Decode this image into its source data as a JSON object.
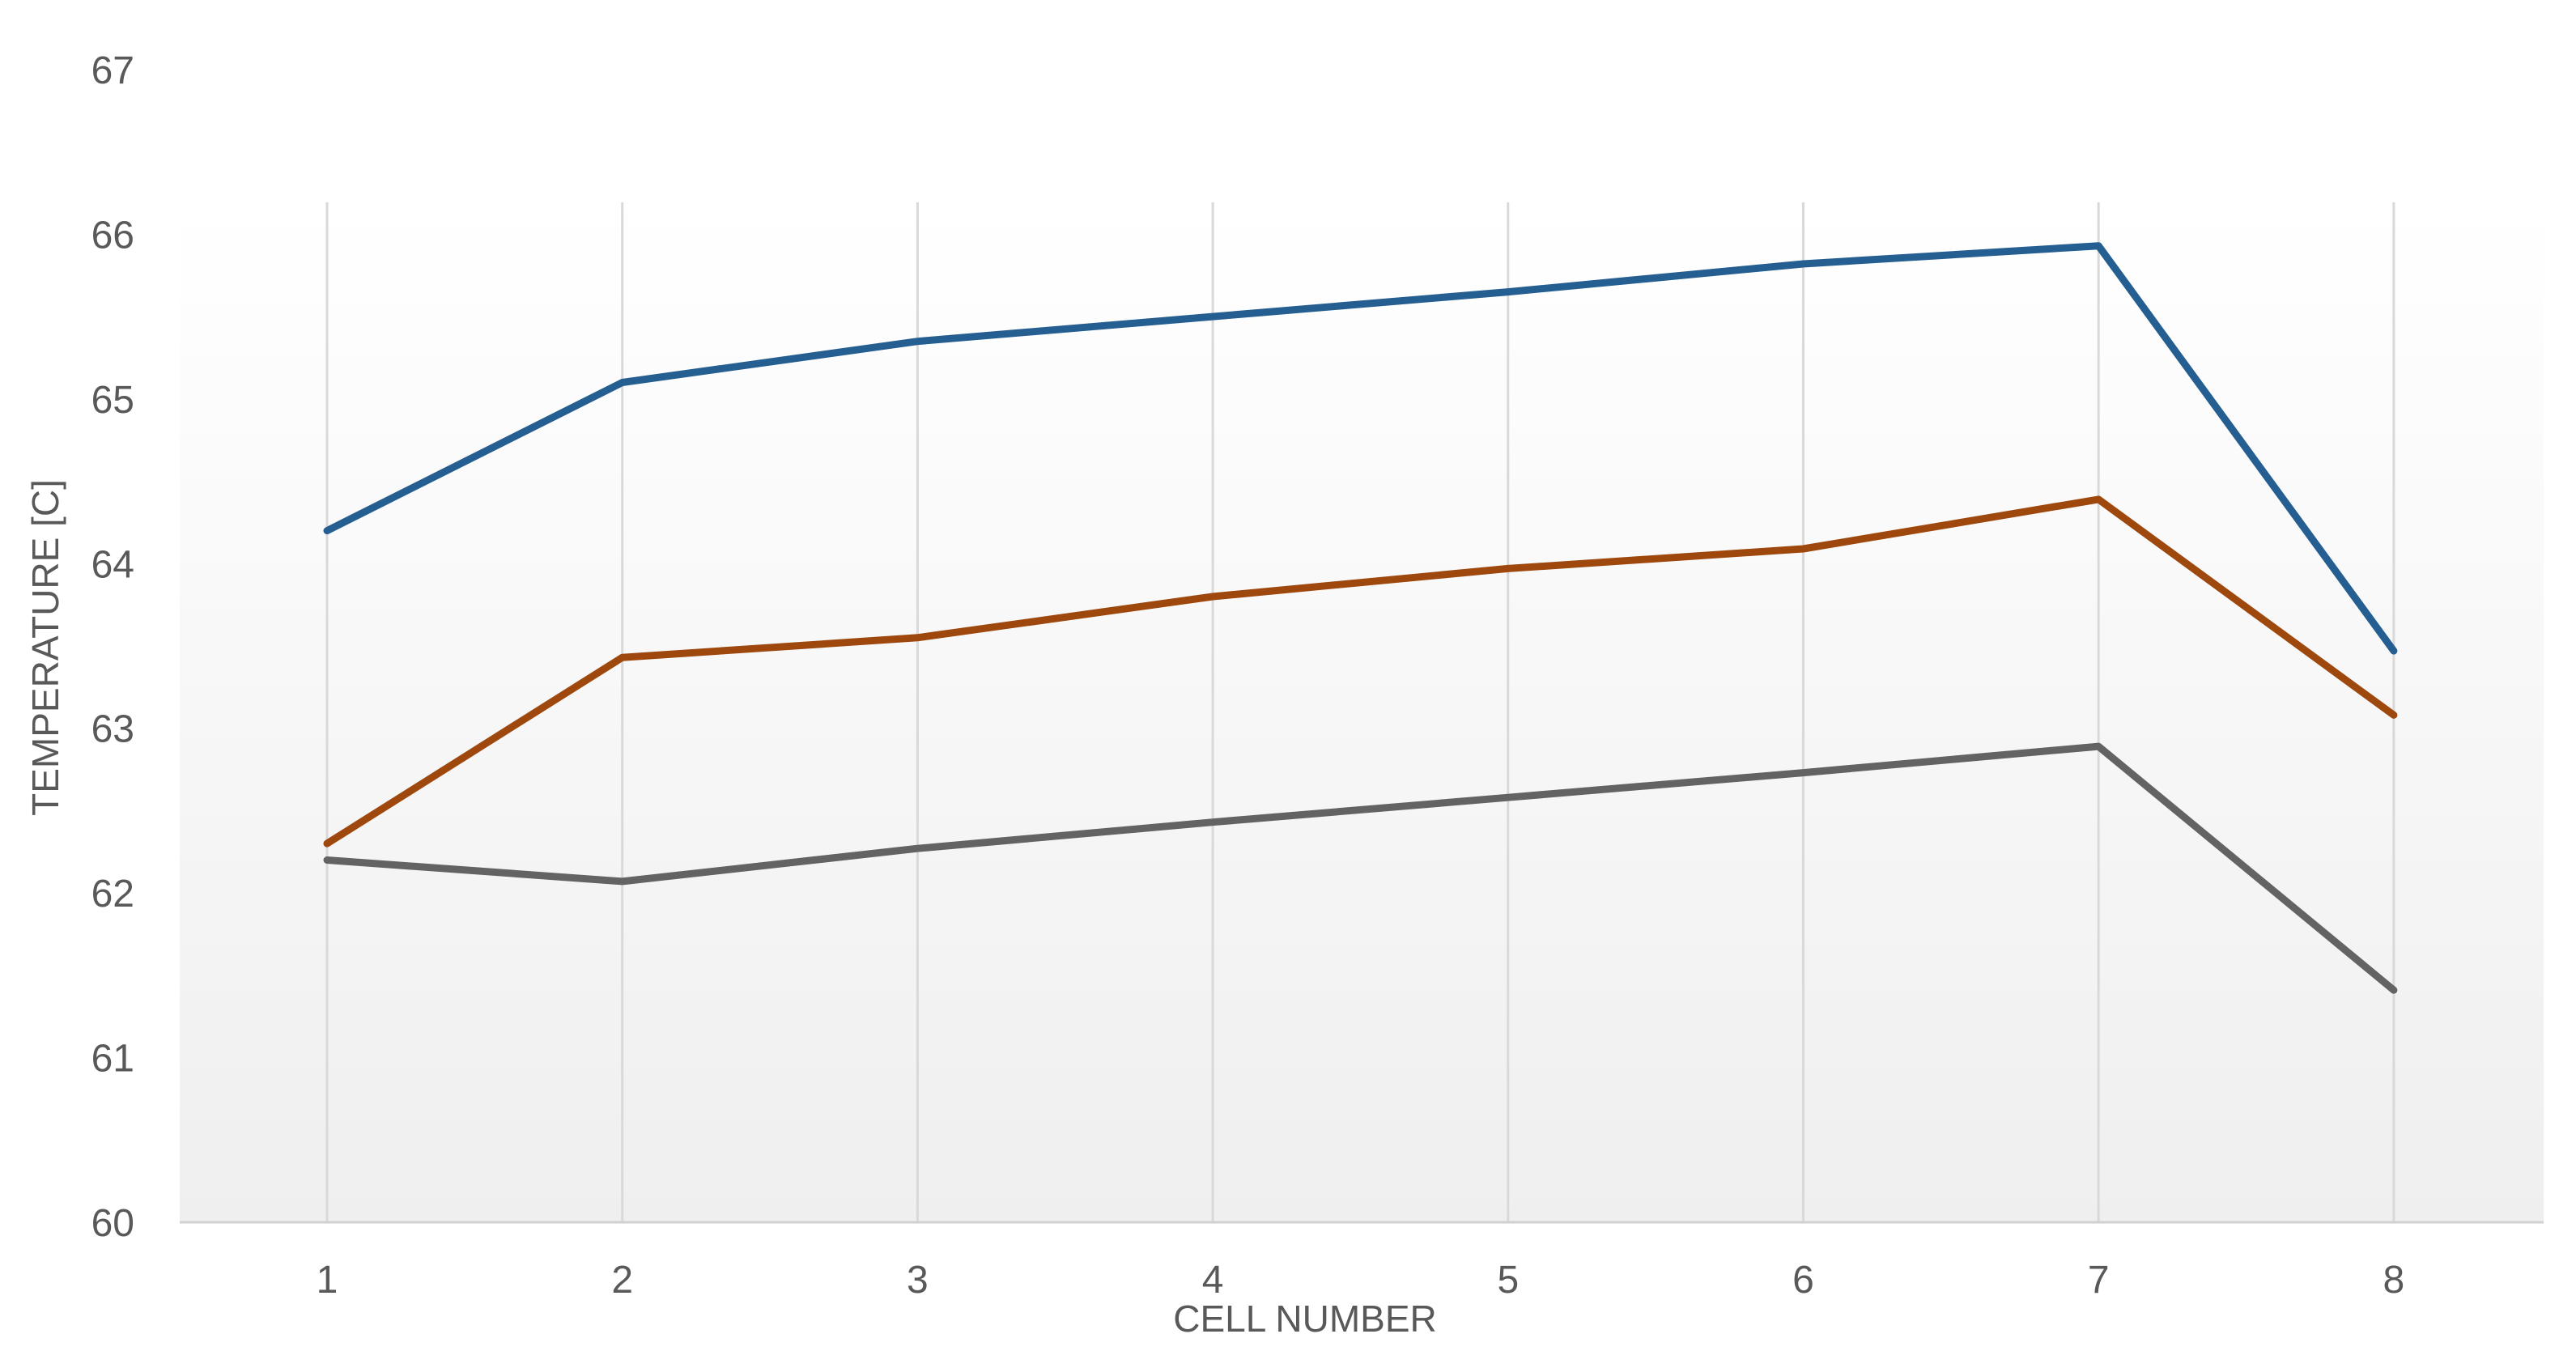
{
  "chart_data": {
    "type": "line",
    "title": "",
    "xlabel": "CELL NUMBER",
    "ylabel": "TEMPERATURE  [C]",
    "categories": [
      "1",
      "2",
      "3",
      "4",
      "5",
      "6",
      "7",
      "8"
    ],
    "ylim": [
      60,
      67
    ],
    "yticks": [
      60,
      61,
      62,
      63,
      64,
      65,
      66,
      67
    ],
    "grid": "vertical",
    "legend": "none",
    "series": [
      {
        "color": "#255E91",
        "values": [
          64.2,
          65.1,
          65.35,
          65.5,
          65.65,
          65.82,
          65.93,
          63.47
        ]
      },
      {
        "color": "#9E480E",
        "values": [
          62.3,
          63.43,
          63.55,
          63.8,
          63.97,
          64.09,
          64.39,
          63.08
        ]
      },
      {
        "color": "#636363",
        "values": [
          62.2,
          62.07,
          62.27,
          62.43,
          62.58,
          62.73,
          62.89,
          61.41
        ]
      }
    ]
  }
}
